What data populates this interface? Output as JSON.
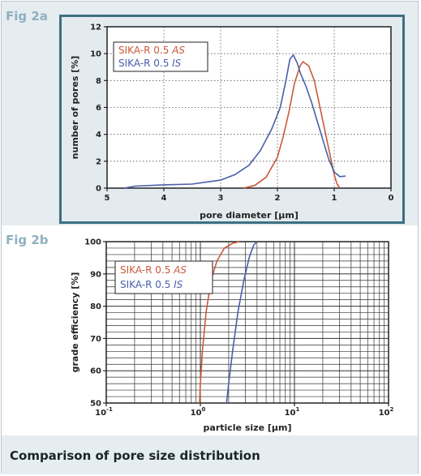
{
  "figures": {
    "fig_a_label": "Fig 2a",
    "fig_b_label": "Fig 2b",
    "caption": "Comparison of pore size distribution"
  },
  "colors": {
    "as": "#c9593a",
    "is": "#4a5eaa"
  },
  "chart_data": [
    {
      "type": "line",
      "title": "",
      "xlabel": "pore diameter  [µm]",
      "ylabel": "number of pores  [%]",
      "xlim": [
        5,
        0
      ],
      "ylim": [
        0,
        12
      ],
      "x_ticks": [
        5,
        4,
        3,
        2,
        1,
        0
      ],
      "y_ticks": [
        0,
        2,
        4,
        6,
        8,
        10,
        12
      ],
      "grid": "dotted",
      "legend": {
        "placement": "top-left",
        "entries": [
          {
            "prefix": "SIKA-R 0.5 ",
            "suffix": "AS",
            "color": "#c9593a"
          },
          {
            "prefix": "SIKA-R 0.5 ",
            "suffix": "IS",
            "color": "#4a5eaa"
          }
        ]
      },
      "series": [
        {
          "color": "#c9593a",
          "points": [
            [
              2.6,
              0
            ],
            [
              2.4,
              0.2
            ],
            [
              2.2,
              0.8
            ],
            [
              2.0,
              2.3
            ],
            [
              1.9,
              3.8
            ],
            [
              1.8,
              5.6
            ],
            [
              1.7,
              7.8
            ],
            [
              1.6,
              9.1
            ],
            [
              1.55,
              9.4
            ],
            [
              1.45,
              9.1
            ],
            [
              1.35,
              8.0
            ],
            [
              1.25,
              6.0
            ],
            [
              1.15,
              4.0
            ],
            [
              1.05,
              2.0
            ],
            [
              1.0,
              1.0
            ],
            [
              0.95,
              0.3
            ],
            [
              0.9,
              0
            ]
          ]
        },
        {
          "color": "#4a5eaa",
          "points": [
            [
              4.7,
              0
            ],
            [
              4.5,
              0.15
            ],
            [
              4.0,
              0.25
            ],
            [
              3.5,
              0.3
            ],
            [
              3.0,
              0.6
            ],
            [
              2.75,
              1.0
            ],
            [
              2.5,
              1.7
            ],
            [
              2.3,
              2.8
            ],
            [
              2.1,
              4.4
            ],
            [
              1.95,
              6.0
            ],
            [
              1.85,
              8.0
            ],
            [
              1.78,
              9.6
            ],
            [
              1.72,
              9.9
            ],
            [
              1.65,
              9.3
            ],
            [
              1.6,
              8.6
            ],
            [
              1.5,
              7.6
            ],
            [
              1.4,
              6.4
            ],
            [
              1.3,
              5.0
            ],
            [
              1.2,
              3.6
            ],
            [
              1.1,
              2.2
            ],
            [
              1.0,
              1.2
            ],
            [
              0.9,
              0.85
            ],
            [
              0.8,
              0.9
            ]
          ]
        }
      ]
    },
    {
      "type": "line",
      "title": "",
      "xlabel": "particle size  [µm]",
      "ylabel": "grade efficiency  [%]",
      "x_scale": "log",
      "xlim": [
        0.1,
        100
      ],
      "ylim": [
        50,
        100
      ],
      "x_ticks": [
        {
          "base": "10",
          "exp": "-1"
        },
        {
          "base": "10",
          "exp": "0"
        },
        {
          "base": "10",
          "exp": "1"
        },
        {
          "base": "10",
          "exp": "2"
        }
      ],
      "y_ticks": [
        50,
        60,
        70,
        80,
        90,
        100
      ],
      "grid": "solid",
      "legend": {
        "placement": "top-left",
        "entries": [
          {
            "prefix": "SIKA-R 0.5 ",
            "suffix": "AS",
            "color": "#c9593a"
          },
          {
            "prefix": "SIKA-R 0.5 ",
            "suffix": "IS",
            "color": "#4a5eaa"
          }
        ]
      },
      "series": [
        {
          "color": "#c9593a",
          "points": [
            [
              0.98,
              50
            ],
            [
              1.0,
              56
            ],
            [
              1.05,
              66
            ],
            [
              1.15,
              78
            ],
            [
              1.3,
              88
            ],
            [
              1.5,
              94
            ],
            [
              1.8,
              98
            ],
            [
              2.2,
              99.5
            ],
            [
              2.6,
              100
            ]
          ]
        },
        {
          "color": "#4a5eaa",
          "points": [
            [
              1.9,
              50
            ],
            [
              2.0,
              56
            ],
            [
              2.2,
              66
            ],
            [
              2.5,
              78
            ],
            [
              2.9,
              88
            ],
            [
              3.3,
              95
            ],
            [
              3.7,
              99
            ],
            [
              4.0,
              100
            ]
          ]
        }
      ]
    }
  ]
}
